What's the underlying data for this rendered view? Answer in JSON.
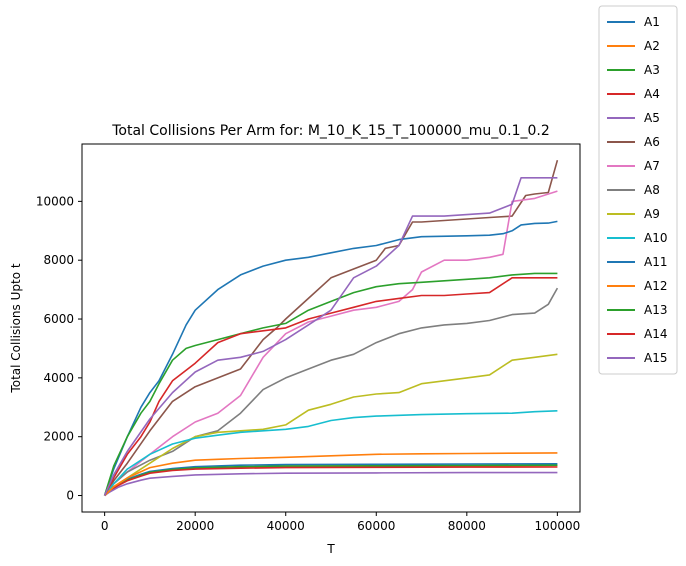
{
  "chart_data": {
    "type": "line",
    "title": "Total Collisions Per Arm for: M_10_K_15_T_100000_mu_0.1_0.2",
    "xlabel": "T",
    "ylabel": "Total Collisions Upto t",
    "xlim": [
      -5000,
      105000
    ],
    "ylim": [
      -560,
      11950
    ],
    "xticks": [
      0,
      20000,
      40000,
      60000,
      80000,
      100000
    ],
    "yticks": [
      0,
      2000,
      4000,
      6000,
      8000,
      10000
    ],
    "xtick_labels": [
      "0",
      "20000",
      "40000",
      "60000",
      "80000",
      "100000"
    ],
    "ytick_labels": [
      "0",
      "2000",
      "4000",
      "6000",
      "8000",
      "10000"
    ],
    "legend_position": "outside-top-right",
    "grid": false,
    "series": [
      {
        "name": "A1",
        "color": "#1f77b4",
        "x": [
          0,
          1000,
          3000,
          5000,
          8000,
          10000,
          15000,
          20000,
          30000,
          40000,
          60000,
          80000,
          100000
        ],
        "y": [
          0,
          150,
          380,
          550,
          720,
          820,
          920,
          980,
          1030,
          1050,
          1060,
          1070,
          1080
        ]
      },
      {
        "name": "A2",
        "color": "#ff7f0e",
        "x": [
          0,
          1000,
          3000,
          5000,
          8000,
          10000,
          15000,
          20000,
          30000,
          40000,
          60000,
          80000,
          100000
        ],
        "y": [
          0,
          140,
          360,
          520,
          680,
          780,
          870,
          930,
          970,
          990,
          1000,
          1010,
          1020
        ]
      },
      {
        "name": "A3",
        "color": "#2ca02c",
        "x": [
          0,
          1000,
          3000,
          5000,
          8000,
          10000,
          15000,
          20000,
          30000,
          40000,
          60000,
          80000,
          100000
        ],
        "y": [
          0,
          140,
          360,
          520,
          690,
          790,
          880,
          940,
          980,
          1000,
          1010,
          1020,
          1030
        ]
      },
      {
        "name": "A4",
        "color": "#d62728",
        "x": [
          0,
          1000,
          3000,
          5000,
          8000,
          10000,
          15000,
          20000,
          30000,
          40000,
          60000,
          80000,
          100000
        ],
        "y": [
          0,
          130,
          340,
          500,
          660,
          760,
          850,
          900,
          930,
          950,
          960,
          965,
          970
        ]
      },
      {
        "name": "A5",
        "color": "#9467bd",
        "x": [
          0,
          1000,
          3000,
          5000,
          8000,
          10000,
          15000,
          20000,
          30000,
          40000,
          60000,
          80000,
          100000
        ],
        "y": [
          0,
          110,
          280,
          400,
          520,
          590,
          650,
          700,
          740,
          760,
          770,
          780,
          780
        ]
      },
      {
        "name": "A6",
        "color": "#8c564b",
        "x": [
          0,
          2000,
          5000,
          10000,
          15000,
          20000,
          25000,
          30000,
          35000,
          38000,
          40000,
          45000,
          50000,
          55000,
          60000,
          62000,
          65000,
          68000,
          70000,
          80000,
          85000,
          90000,
          93000,
          95000,
          98000,
          100000
        ],
        "y": [
          0,
          500,
          1100,
          2200,
          3200,
          3700,
          4000,
          4300,
          5300,
          5700,
          6000,
          6700,
          7400,
          7700,
          8000,
          8400,
          8500,
          9300,
          9300,
          9400,
          9450,
          9500,
          10200,
          10250,
          10300,
          11400
        ]
      },
      {
        "name": "A7",
        "color": "#e377c2",
        "x": [
          0,
          2000,
          5000,
          10000,
          15000,
          20000,
          25000,
          30000,
          35000,
          40000,
          45000,
          50000,
          55000,
          60000,
          65000,
          68000,
          70000,
          75000,
          80000,
          85000,
          88000,
          90000,
          95000,
          100000
        ],
        "y": [
          0,
          400,
          800,
          1400,
          2000,
          2500,
          2800,
          3400,
          4700,
          5500,
          5900,
          6100,
          6300,
          6400,
          6600,
          7000,
          7600,
          8000,
          8000,
          8100,
          8200,
          10000,
          10100,
          10350
        ]
      },
      {
        "name": "A8",
        "color": "#7f7f7f",
        "x": [
          0,
          2000,
          5000,
          10000,
          15000,
          20000,
          25000,
          30000,
          35000,
          40000,
          45000,
          50000,
          55000,
          60000,
          65000,
          70000,
          75000,
          80000,
          85000,
          90000,
          95000,
          98000,
          100000
        ],
        "y": [
          0,
          400,
          800,
          1200,
          1500,
          2000,
          2200,
          2800,
          3600,
          4000,
          4300,
          4600,
          4800,
          5200,
          5500,
          5700,
          5800,
          5850,
          5950,
          6150,
          6200,
          6500,
          7050
        ]
      },
      {
        "name": "A9",
        "color": "#bcbd22",
        "x": [
          0,
          2000,
          5000,
          10000,
          15000,
          20000,
          25000,
          30000,
          35000,
          40000,
          45000,
          50000,
          55000,
          60000,
          65000,
          70000,
          75000,
          80000,
          85000,
          90000,
          95000,
          100000
        ],
        "y": [
          0,
          300,
          600,
          1100,
          1600,
          2000,
          2150,
          2200,
          2250,
          2400,
          2900,
          3100,
          3350,
          3450,
          3500,
          3800,
          3900,
          4000,
          4100,
          4600,
          4700,
          4800
        ]
      },
      {
        "name": "A10",
        "color": "#17becf",
        "x": [
          0,
          2000,
          5000,
          10000,
          15000,
          20000,
          25000,
          30000,
          35000,
          40000,
          45000,
          50000,
          55000,
          60000,
          70000,
          80000,
          90000,
          95000,
          100000
        ],
        "y": [
          0,
          400,
          900,
          1400,
          1750,
          1950,
          2050,
          2150,
          2200,
          2250,
          2350,
          2550,
          2650,
          2700,
          2750,
          2780,
          2800,
          2850,
          2880
        ]
      },
      {
        "name": "A11",
        "color": "#1f77b4",
        "x": [
          0,
          2000,
          5000,
          8000,
          10000,
          12000,
          15000,
          18000,
          20000,
          25000,
          30000,
          35000,
          40000,
          45000,
          50000,
          55000,
          60000,
          65000,
          70000,
          80000,
          85000,
          88000,
          90000,
          92000,
          95000,
          98000,
          100000
        ],
        "y": [
          0,
          900,
          2000,
          3000,
          3500,
          3900,
          4800,
          5800,
          6300,
          7000,
          7500,
          7800,
          8000,
          8100,
          8250,
          8400,
          8500,
          8700,
          8800,
          8830,
          8850,
          8900,
          9000,
          9200,
          9250,
          9260,
          9320
        ]
      },
      {
        "name": "A12",
        "color": "#ff7f0e",
        "x": [
          0,
          2000,
          5000,
          10000,
          15000,
          20000,
          25000,
          30000,
          40000,
          50000,
          60000,
          70000,
          80000,
          90000,
          100000
        ],
        "y": [
          0,
          300,
          600,
          950,
          1100,
          1200,
          1230,
          1260,
          1300,
          1350,
          1400,
          1420,
          1430,
          1440,
          1450
        ]
      },
      {
        "name": "A13",
        "color": "#2ca02c",
        "x": [
          0,
          2000,
          5000,
          8000,
          10000,
          12000,
          15000,
          18000,
          20000,
          25000,
          30000,
          35000,
          40000,
          45000,
          50000,
          55000,
          60000,
          65000,
          70000,
          75000,
          80000,
          85000,
          90000,
          95000,
          100000
        ],
        "y": [
          0,
          1000,
          2000,
          2800,
          3200,
          3800,
          4600,
          5000,
          5100,
          5300,
          5500,
          5700,
          5850,
          6300,
          6600,
          6900,
          7100,
          7200,
          7250,
          7300,
          7350,
          7400,
          7500,
          7550,
          7550
        ]
      },
      {
        "name": "A14",
        "color": "#d62728",
        "x": [
          0,
          2000,
          5000,
          8000,
          10000,
          12000,
          15000,
          20000,
          25000,
          30000,
          35000,
          40000,
          45000,
          50000,
          55000,
          60000,
          65000,
          70000,
          75000,
          80000,
          85000,
          90000,
          95000,
          100000
        ],
        "y": [
          0,
          600,
          1400,
          2000,
          2500,
          3200,
          3900,
          4500,
          5200,
          5500,
          5600,
          5700,
          6000,
          6200,
          6400,
          6600,
          6700,
          6800,
          6800,
          6850,
          6900,
          7400,
          7400,
          7400
        ]
      },
      {
        "name": "A15",
        "color": "#9467bd",
        "x": [
          0,
          2000,
          5000,
          10000,
          15000,
          20000,
          25000,
          30000,
          35000,
          40000,
          45000,
          50000,
          55000,
          60000,
          65000,
          68000,
          70000,
          75000,
          80000,
          85000,
          90000,
          92000,
          95000,
          100000
        ],
        "y": [
          0,
          700,
          1500,
          2600,
          3500,
          4200,
          4600,
          4700,
          4900,
          5300,
          5800,
          6300,
          7400,
          7800,
          8500,
          9500,
          9500,
          9500,
          9550,
          9600,
          9900,
          10800,
          10800,
          10800
        ]
      }
    ]
  }
}
